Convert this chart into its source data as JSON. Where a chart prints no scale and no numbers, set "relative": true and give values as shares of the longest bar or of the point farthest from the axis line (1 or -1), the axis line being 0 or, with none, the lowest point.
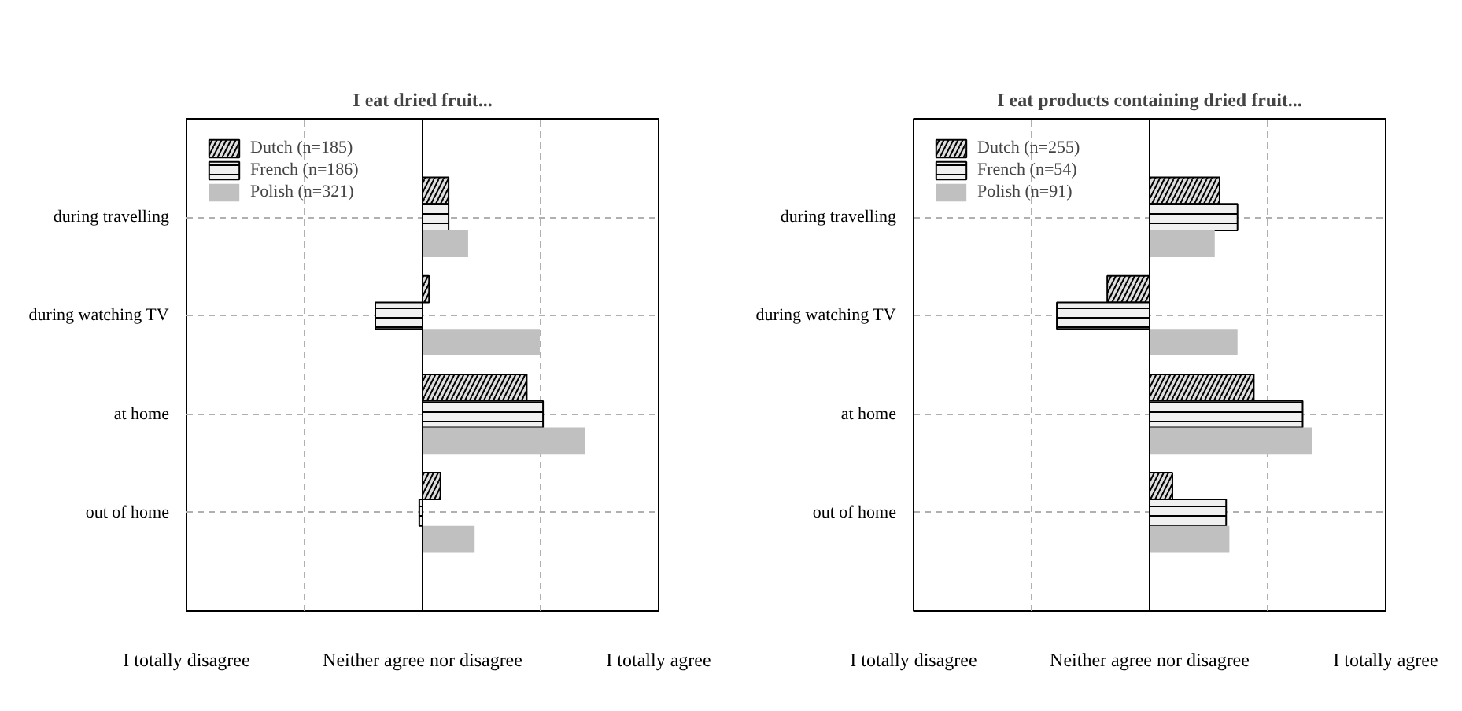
{
  "chart_data": [
    {
      "type": "bar",
      "orientation": "horizontal",
      "title": "I eat dried fruit...",
      "relative": true,
      "categories": [
        "during travelling",
        "during watching TV",
        "at home",
        "out of home"
      ],
      "series": [
        {
          "name": "Dutch (n=185)",
          "color": "#dcdcdc",
          "values": [
            0.16,
            0.04,
            0.64,
            0.11
          ]
        },
        {
          "name": "French (n=186)",
          "color": "#f0f0f0",
          "values": [
            0.16,
            -0.29,
            0.74,
            -0.02
          ]
        },
        {
          "name": "Polish (n=321)",
          "color": "#c0c0c0",
          "values": [
            0.28,
            0.72,
            1.0,
            0.32
          ]
        }
      ],
      "annotations": [
        "I totally disagree",
        "Neither agree nor disagree",
        "I totally agree"
      ],
      "ref_lines": [
        {
          "axis": "x",
          "value": 0,
          "color": "#000000"
        }
      ],
      "grid": true,
      "legend": "top left"
    },
    {
      "type": "bar",
      "orientation": "horizontal",
      "title": "I eat products containing dried fruit...",
      "relative": true,
      "categories": [
        "during travelling",
        "during watching TV",
        "at home",
        "out of home"
      ],
      "series": [
        {
          "name": "Dutch (n=255)",
          "color": "#dcdcdc",
          "values": [
            0.43,
            -0.26,
            0.64,
            0.14
          ]
        },
        {
          "name": "French (n=54)",
          "color": "#f0f0f0",
          "values": [
            0.54,
            -0.57,
            0.94,
            0.47
          ]
        },
        {
          "name": "Polish (n=91)",
          "color": "#c0c0c0",
          "values": [
            0.4,
            0.54,
            1.0,
            0.49
          ]
        }
      ],
      "annotations": [
        "I totally disagree",
        "Neither agree nor disagree",
        "I totally agree"
      ],
      "ref_lines": [
        {
          "axis": "x",
          "value": 0,
          "color": "#000000"
        }
      ],
      "grid": true,
      "legend": "top left"
    }
  ]
}
